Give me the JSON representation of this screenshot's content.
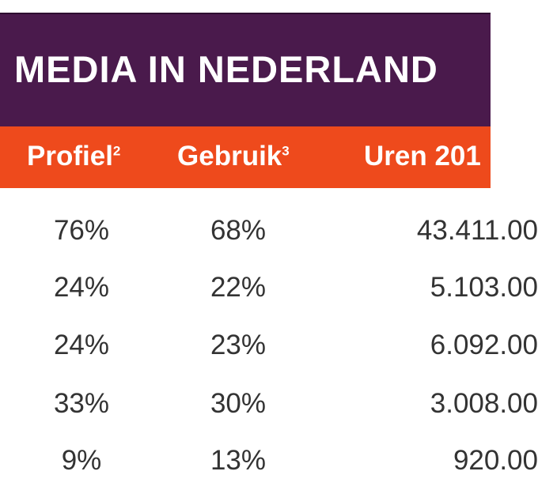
{
  "chart_data": {
    "type": "table",
    "title": "MEDIA IN NEDERLAND",
    "columns": [
      {
        "label": "Profiel",
        "footnote": "2"
      },
      {
        "label": "Gebruik",
        "footnote": "3"
      },
      {
        "label": "Uren 201",
        "footnote": ""
      }
    ],
    "rows": [
      {
        "profiel": "76%",
        "gebruik": "68%",
        "uren": "43.411.00"
      },
      {
        "profiel": "24%",
        "gebruik": "22%",
        "uren": "5.103.00"
      },
      {
        "profiel": "24%",
        "gebruik": "23%",
        "uren": "6.092.00"
      },
      {
        "profiel": "33%",
        "gebruik": "30%",
        "uren": "3.008.00"
      },
      {
        "profiel": "9%",
        "gebruik": "13%",
        "uren": "920.00"
      }
    ]
  },
  "colors": {
    "title_bg": "#4a1a4c",
    "header_bg": "#ee4a1c",
    "header_text": "#ffffff",
    "cell_text": "#333333"
  }
}
